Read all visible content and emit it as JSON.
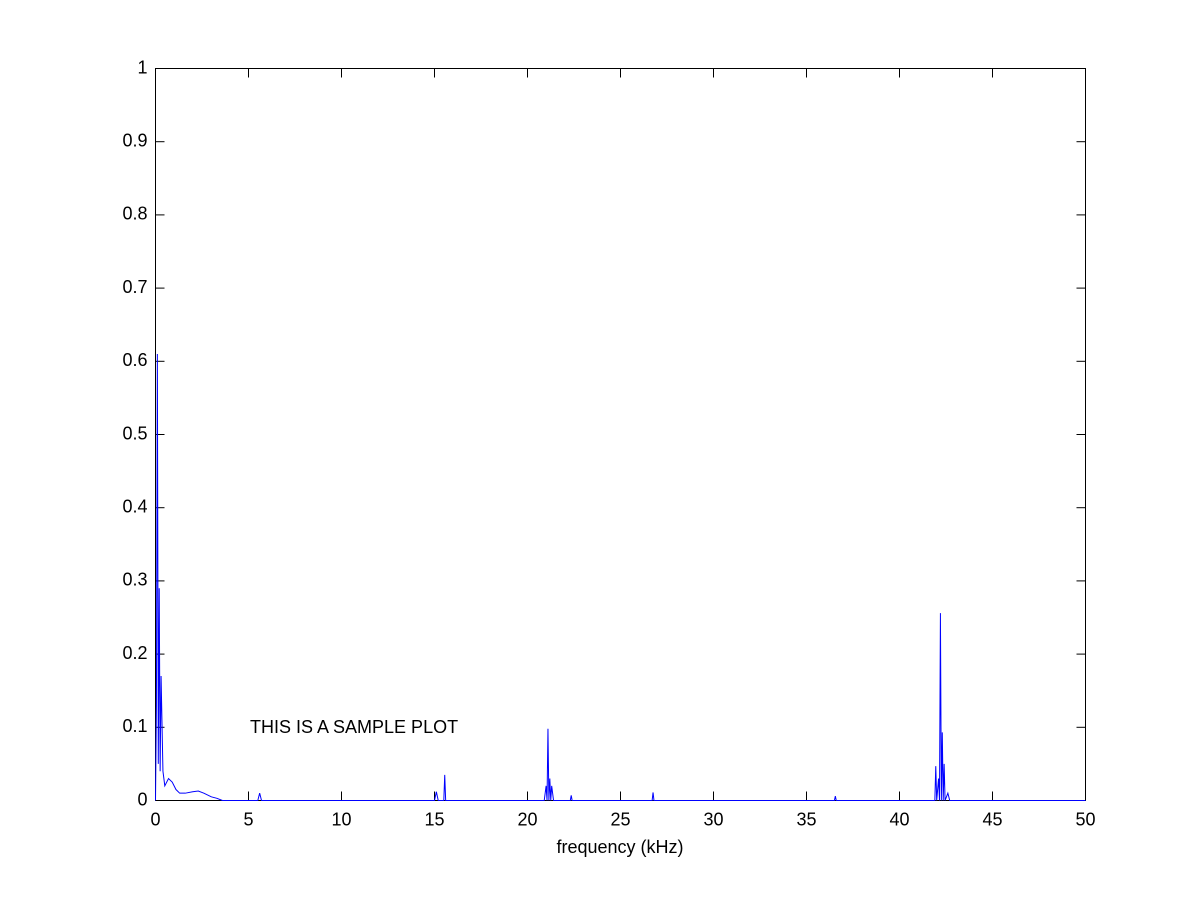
{
  "chart_data": {
    "type": "line",
    "xlabel": "frequency (kHz)",
    "annotation": "THIS IS A SAMPLE PLOT",
    "x": [
      0,
      0.05,
      0.1,
      0.15,
      0.2,
      0.25,
      0.3,
      0.4,
      0.5,
      0.7,
      0.9,
      1.1,
      1.3,
      1.6,
      2.0,
      2.3,
      2.6,
      3.0,
      3.3,
      3.6,
      5.5,
      5.6,
      5.7,
      15.0,
      15.1,
      15.2,
      15.5,
      15.55,
      15.6,
      20.9,
      21.0,
      21.05,
      21.1,
      21.15,
      21.2,
      21.25,
      21.3,
      21.4,
      22.3,
      22.35,
      22.4,
      26.7,
      26.75,
      26.8,
      36.5,
      36.55,
      36.6,
      41.9,
      41.95,
      42.0,
      42.1,
      42.15,
      42.2,
      42.25,
      42.3,
      42.35,
      42.4,
      42.45,
      42.6,
      42.7,
      50
    ],
    "series": [
      {
        "color": "#0000ff",
        "values": [
          0,
          0.13,
          0.61,
          0.05,
          0.29,
          0.04,
          0.17,
          0.04,
          0.02,
          0.03,
          0.025,
          0.015,
          0.01,
          0.01,
          0.012,
          0.013,
          0.01,
          0.005,
          0.003,
          0,
          0,
          0.01,
          0,
          0,
          0.012,
          0,
          0,
          0.035,
          0,
          0,
          0.02,
          0,
          0.098,
          0,
          0.03,
          0,
          0.02,
          0,
          0,
          0.007,
          0,
          0,
          0.011,
          0,
          0,
          0.006,
          0,
          0,
          0.047,
          0,
          0.03,
          0,
          0.256,
          0,
          0.093,
          0,
          0.05,
          0,
          0.01,
          0,
          0
        ]
      }
    ],
    "xlim": [
      0,
      50
    ],
    "xticks": [
      0,
      5,
      10,
      15,
      20,
      25,
      30,
      35,
      40,
      45,
      50
    ],
    "ylim": [
      0,
      1
    ],
    "yticks": [
      0,
      0.1,
      0.2,
      0.3,
      0.4,
      0.5,
      0.6,
      0.7,
      0.8,
      0.9,
      1
    ],
    "grid": false
  }
}
